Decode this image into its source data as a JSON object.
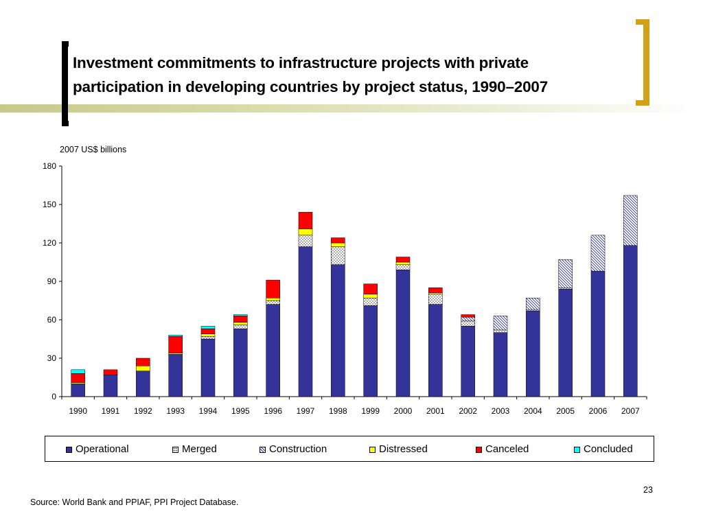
{
  "slide": {
    "title_line1": "Investment commitments to infrastructure projects with private",
    "title_line2": "participation in developing countries by project status, 1990–2007",
    "source": "Source: World Bank and PPIAF, PPI Project Database.",
    "page_number": "23"
  },
  "colors": {
    "bracket_left": "#000000",
    "bracket_right": "#d4a017",
    "band": "#c7c98a"
  },
  "chart_data": {
    "type": "bar",
    "stacked": true,
    "unit_label": "2007 US$ billions",
    "xlabel": "",
    "ylabel": "",
    "ylim": [
      0,
      180
    ],
    "yticks": [
      0,
      30,
      60,
      90,
      120,
      150,
      180
    ],
    "grid": false,
    "legend_position": "bottom",
    "categories": [
      "1990",
      "1991",
      "1992",
      "1993",
      "1994",
      "1995",
      "1996",
      "1997",
      "1998",
      "1999",
      "2000",
      "2001",
      "2002",
      "2003",
      "2004",
      "2005",
      "2006",
      "2007"
    ],
    "series": [
      {
        "name": "Operational",
        "color": "#333399",
        "pattern": "solid",
        "values": [
          10,
          17,
          20,
          33,
          45,
          53,
          72,
          117,
          103,
          71,
          99,
          72,
          55,
          50,
          67,
          84,
          98,
          118
        ]
      },
      {
        "name": "Merged",
        "color": "#ffffff",
        "pattern": "dots",
        "values": [
          0,
          0,
          0,
          0,
          2,
          3,
          3,
          9,
          14,
          6,
          4,
          8,
          4,
          2,
          1,
          1,
          0,
          0
        ]
      },
      {
        "name": "Construction",
        "color": "#ffffff",
        "pattern": "hatch",
        "values": [
          0,
          0,
          0,
          0,
          0,
          0,
          0,
          0,
          0,
          0,
          0,
          0,
          3,
          11,
          9,
          22,
          28,
          39
        ]
      },
      {
        "name": "Distressed",
        "color": "#ffff00",
        "pattern": "solid",
        "values": [
          1,
          0,
          4,
          1,
          2,
          2,
          2,
          5,
          3,
          3,
          2,
          1,
          0,
          0,
          0,
          0,
          0,
          0
        ]
      },
      {
        "name": "Canceled",
        "color": "#ff0000",
        "pattern": "solid",
        "values": [
          7,
          4,
          6,
          13,
          4,
          5,
          14,
          13,
          4,
          8,
          4,
          4,
          2,
          0,
          0,
          0,
          0,
          0
        ]
      },
      {
        "name": "Concluded",
        "color": "#00ffff",
        "pattern": "solid",
        "values": [
          3,
          0,
          0,
          1,
          2,
          1,
          0,
          0,
          0,
          0,
          0,
          0,
          0,
          0,
          0,
          0,
          0,
          0
        ]
      }
    ]
  }
}
